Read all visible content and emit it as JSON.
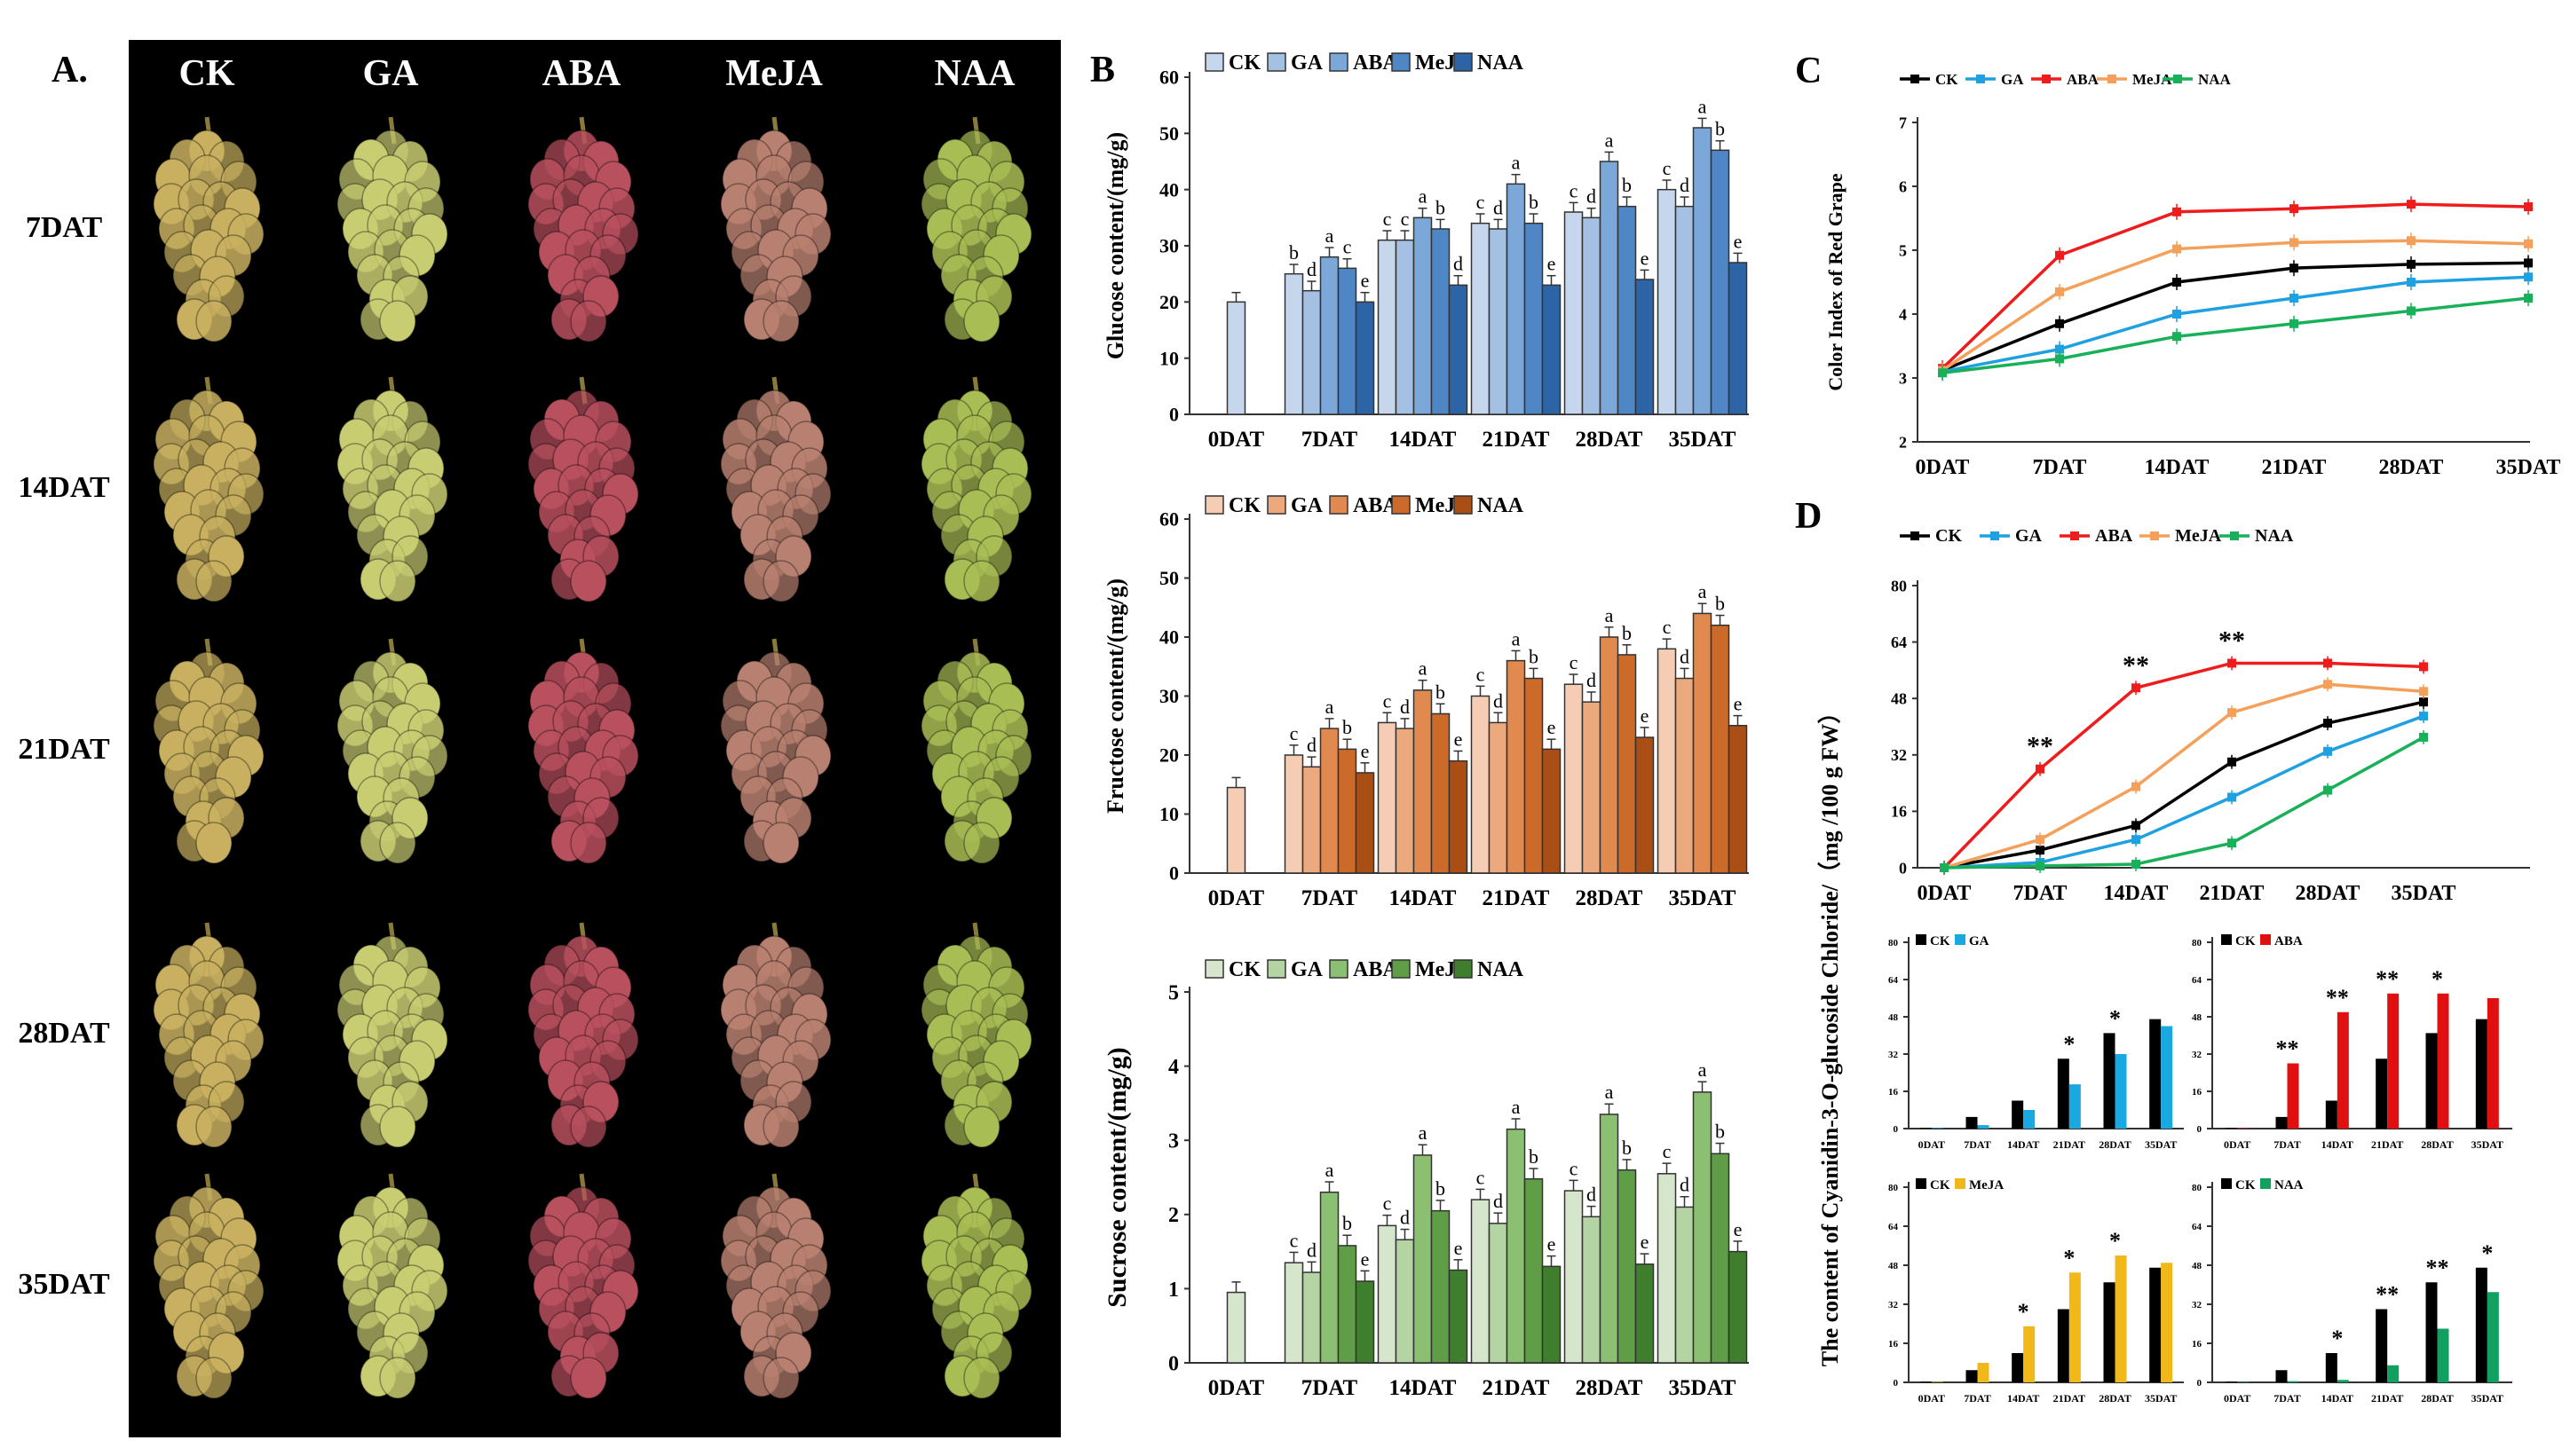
{
  "panel_a": {
    "label": "A.",
    "treatments": [
      "CK",
      "GA",
      "ABA",
      "MeJA",
      "NAA"
    ],
    "stages": [
      "7DAT",
      "14DAT",
      "21DAT",
      "28DAT",
      "35DAT"
    ],
    "colors": {
      "CK": "#c8b060",
      "GA": "#c9cd72",
      "ABA": "#b8505e",
      "MeJA": "#b88070",
      "NAA": "#a9bd55"
    }
  },
  "chart_data": [
    {
      "id": "B1",
      "panel_label": "B",
      "type": "bar",
      "ylabel": "Glucose content/(mg/g)",
      "ylim": [
        0,
        60
      ],
      "yticks": [
        0,
        10,
        20,
        30,
        40,
        50,
        60
      ],
      "categories": [
        "0DAT",
        "7DAT",
        "14DAT",
        "21DAT",
        "28DAT",
        "35DAT"
      ],
      "series_names": [
        "CK",
        "GA",
        "ABA",
        "MeJA",
        "NAA"
      ],
      "colors": [
        "#c6d6ec",
        "#a4c0e2",
        "#7ba8d8",
        "#4f86c6",
        "#2d64a6"
      ],
      "values": [
        [
          20
        ],
        [
          25,
          22,
          28,
          26,
          20
        ],
        [
          31,
          31,
          35,
          33,
          23
        ],
        [
          34,
          33,
          41,
          34,
          23
        ],
        [
          36,
          35,
          45,
          37,
          24
        ],
        [
          40,
          37,
          51,
          47,
          27
        ]
      ],
      "letters": [
        [],
        [
          "b",
          "d",
          "a",
          "c",
          "e"
        ],
        [
          "c",
          "c",
          "a",
          "b",
          "d"
        ],
        [
          "c",
          "d",
          "a",
          "b",
          "e"
        ],
        [
          "c",
          "d",
          "a",
          "b",
          "e"
        ],
        [
          "c",
          "d",
          "a",
          "b",
          "e"
        ]
      ]
    },
    {
      "id": "B2",
      "type": "bar",
      "ylabel": "Fructose content/(mg/g)",
      "ylim": [
        0,
        60
      ],
      "yticks": [
        0,
        10,
        20,
        30,
        40,
        50,
        60
      ],
      "categories": [
        "0DAT",
        "7DAT",
        "14DAT",
        "21DAT",
        "28DAT",
        "35DAT"
      ],
      "series_names": [
        "CK",
        "GA",
        "ABA",
        "MeJA",
        "NAA"
      ],
      "colors": [
        "#f4cdb4",
        "#eda97e",
        "#e08a4f",
        "#cc6a2a",
        "#a94f15"
      ],
      "values": [
        [
          14.5
        ],
        [
          20,
          18,
          24.5,
          21,
          17
        ],
        [
          25.5,
          24.5,
          31,
          27,
          19
        ],
        [
          30,
          25.5,
          36,
          33,
          21
        ],
        [
          32,
          29,
          40,
          37,
          23
        ],
        [
          38,
          33,
          44,
          42,
          25
        ]
      ],
      "letters": [
        [],
        [
          "c",
          "d",
          "a",
          "b",
          "e"
        ],
        [
          "c",
          "d",
          "a",
          "b",
          "e"
        ],
        [
          "c",
          "d",
          "a",
          "b",
          "e"
        ],
        [
          "c",
          "d",
          "a",
          "b",
          "e"
        ],
        [
          "c",
          "d",
          "a",
          "b",
          "e"
        ]
      ]
    },
    {
      "id": "B3",
      "type": "bar",
      "ylabel": "Sucrose content/(mg/g)",
      "ylim": [
        0,
        5
      ],
      "yticks": [
        0,
        1,
        2,
        3,
        4,
        5
      ],
      "categories": [
        "0DAT",
        "7DAT",
        "14DAT",
        "21DAT",
        "28DAT",
        "35DAT"
      ],
      "series_names": [
        "CK",
        "GA",
        "ABA",
        "MeJA",
        "NAA"
      ],
      "colors": [
        "#d6e6cc",
        "#b4d4a3",
        "#8bbf72",
        "#5f9e47",
        "#3f7e2c"
      ],
      "values": [
        [
          0.95
        ],
        [
          1.35,
          1.22,
          2.3,
          1.58,
          1.1
        ],
        [
          1.85,
          1.66,
          2.8,
          2.05,
          1.25
        ],
        [
          2.2,
          1.88,
          3.15,
          2.48,
          1.3
        ],
        [
          2.32,
          1.97,
          3.35,
          2.6,
          1.33
        ],
        [
          2.55,
          2.1,
          3.65,
          2.82,
          1.5
        ]
      ],
      "letters": [
        [],
        [
          "c",
          "d",
          "a",
          "b",
          "e"
        ],
        [
          "c",
          "d",
          "a",
          "b",
          "e"
        ],
        [
          "c",
          "d",
          "a",
          "b",
          "e"
        ],
        [
          "c",
          "d",
          "a",
          "b",
          "e"
        ],
        [
          "c",
          "d",
          "a",
          "b",
          "e"
        ]
      ]
    },
    {
      "id": "C",
      "panel_label": "C",
      "type": "line",
      "ylabel": "Color Index of Red Grape",
      "ylim": [
        2,
        7
      ],
      "yticks": [
        2,
        3,
        4,
        5,
        6,
        7
      ],
      "x": [
        "0DAT",
        "7DAT",
        "14DAT",
        "21DAT",
        "28DAT",
        "35DAT"
      ],
      "series": [
        {
          "name": "CK",
          "color": "#000000",
          "values": [
            3.12,
            3.85,
            4.5,
            4.72,
            4.78,
            4.8
          ]
        },
        {
          "name": "GA",
          "color": "#1fa0e0",
          "values": [
            3.1,
            3.45,
            4.0,
            4.25,
            4.5,
            4.58
          ]
        },
        {
          "name": "ABA",
          "color": "#ee1c1c",
          "values": [
            3.15,
            4.92,
            5.6,
            5.65,
            5.72,
            5.68
          ]
        },
        {
          "name": "MeJA",
          "color": "#f5a05a",
          "values": [
            3.12,
            4.35,
            5.02,
            5.12,
            5.15,
            5.1
          ]
        },
        {
          "name": "NAA",
          "color": "#18b058",
          "values": [
            3.08,
            3.3,
            3.65,
            3.85,
            4.05,
            4.25
          ]
        }
      ]
    },
    {
      "id": "D",
      "panel_label": "D",
      "type": "line",
      "ylabel": "The content of Cyanidin-3-O-glucoside Chloride/（mg /100 g FW）",
      "ylim": [
        0,
        80
      ],
      "yticks": [
        0,
        16,
        32,
        48,
        64,
        80
      ],
      "x": [
        "0DAT",
        "7DAT",
        "14DAT",
        "21DAT",
        "28DAT",
        "35DAT"
      ],
      "series": [
        {
          "name": "CK",
          "color": "#000000",
          "values": [
            0,
            5,
            12,
            30,
            41,
            47
          ]
        },
        {
          "name": "GA",
          "color": "#1fa0e0",
          "values": [
            0,
            1.5,
            8,
            20,
            33,
            43
          ]
        },
        {
          "name": "ABA",
          "color": "#ee1c1c",
          "values": [
            0,
            28,
            51,
            58,
            58,
            57
          ]
        },
        {
          "name": "MeJA",
          "color": "#f5a05a",
          "values": [
            0,
            8,
            23,
            44,
            52,
            50
          ]
        },
        {
          "name": "NAA",
          "color": "#18b058",
          "values": [
            0,
            0.5,
            1,
            7,
            22,
            37
          ]
        }
      ],
      "annotations": [
        {
          "x": "7DAT",
          "text": "**"
        },
        {
          "x": "14DAT",
          "text": "**"
        },
        {
          "x": "21DAT",
          "text": "**"
        }
      ]
    },
    {
      "id": "D1",
      "type": "bar",
      "ylim": [
        0,
        80
      ],
      "yticks": [
        0,
        16,
        32,
        48,
        64,
        80
      ],
      "categories": [
        "0DAT",
        "7DAT",
        "14DAT",
        "21DAT",
        "28DAT",
        "35DAT"
      ],
      "series": [
        {
          "name": "CK",
          "color": "#000000",
          "values": [
            0.3,
            5,
            12,
            30,
            41,
            47
          ]
        },
        {
          "name": "GA",
          "color": "#1aa8e0",
          "values": [
            0.2,
            1.5,
            8,
            19,
            32,
            44
          ]
        }
      ],
      "stars": [
        "",
        "",
        "",
        "*",
        "*",
        ""
      ]
    },
    {
      "id": "D2",
      "type": "bar",
      "ylim": [
        0,
        80
      ],
      "yticks": [
        0,
        16,
        32,
        48,
        64,
        80
      ],
      "categories": [
        "0DAT",
        "7DAT",
        "14DAT",
        "21DAT",
        "28DAT",
        "35DAT"
      ],
      "series": [
        {
          "name": "CK",
          "color": "#000000",
          "values": [
            0.3,
            5,
            12,
            30,
            41,
            47
          ]
        },
        {
          "name": "ABA",
          "color": "#e01010",
          "values": [
            0.2,
            28,
            50,
            58,
            58,
            56
          ]
        }
      ],
      "stars": [
        "",
        "**",
        "**",
        "**",
        "*",
        ""
      ]
    },
    {
      "id": "D3",
      "type": "bar",
      "ylim": [
        0,
        80
      ],
      "yticks": [
        0,
        16,
        32,
        48,
        64,
        80
      ],
      "categories": [
        "0DAT",
        "7DAT",
        "14DAT",
        "21DAT",
        "28DAT",
        "35DAT"
      ],
      "series": [
        {
          "name": "CK",
          "color": "#000000",
          "values": [
            0.3,
            5,
            12,
            30,
            41,
            47
          ]
        },
        {
          "name": "MeJA",
          "color": "#f0b818",
          "values": [
            0.2,
            8,
            23,
            45,
            52,
            49
          ]
        }
      ],
      "stars": [
        "",
        "",
        "*",
        "*",
        "*",
        ""
      ]
    },
    {
      "id": "D4",
      "type": "bar",
      "ylim": [
        0,
        80
      ],
      "yticks": [
        0,
        16,
        32,
        48,
        64,
        80
      ],
      "categories": [
        "0DAT",
        "7DAT",
        "14DAT",
        "21DAT",
        "28DAT",
        "35DAT"
      ],
      "series": [
        {
          "name": "CK",
          "color": "#000000",
          "values": [
            0.3,
            5,
            12,
            30,
            41,
            47
          ]
        },
        {
          "name": "NAA",
          "color": "#12a060",
          "values": [
            0.2,
            0.5,
            1,
            7,
            22,
            37
          ]
        }
      ],
      "stars": [
        "",
        "",
        "*",
        "**",
        "**",
        "*"
      ]
    }
  ]
}
